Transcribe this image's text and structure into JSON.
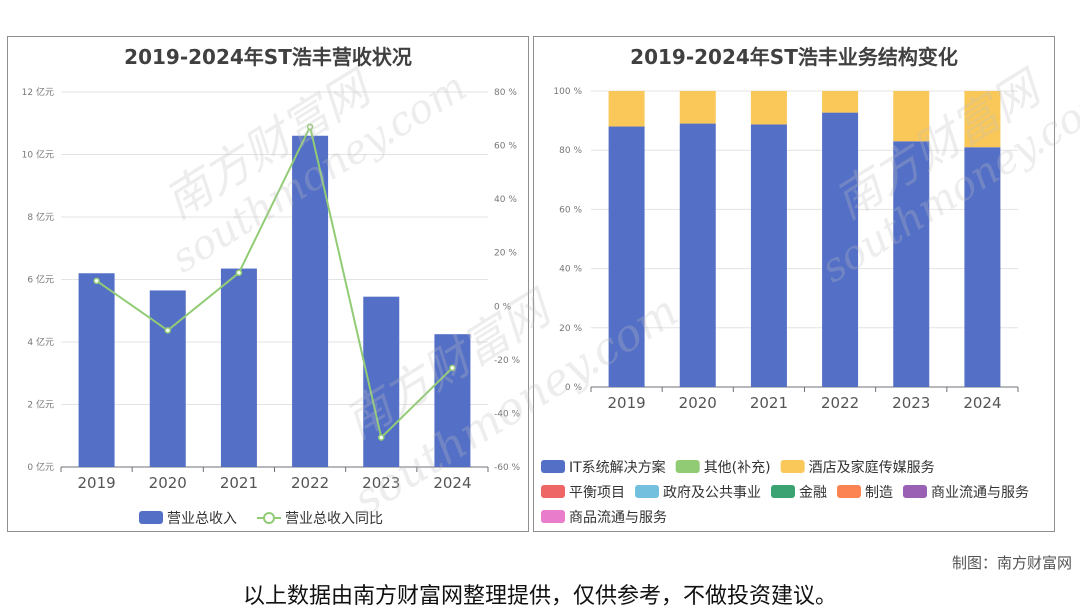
{
  "chart_data": [
    {
      "type": "bar",
      "title": "2019-2024年ST浩丰营收状况",
      "categories": [
        "2019",
        "2020",
        "2021",
        "2022",
        "2023",
        "2024"
      ],
      "left_axis": {
        "ticks": [
          "0 亿元",
          "2 亿元",
          "4 亿元",
          "6 亿元",
          "8 亿元",
          "10 亿元",
          "12 亿元"
        ],
        "ylim": [
          0,
          12
        ]
      },
      "right_axis": {
        "ticks": [
          "-60 %",
          "-40 %",
          "-20 %",
          "0 %",
          "20 %",
          "40 %",
          "60 %",
          "80 %"
        ],
        "ylim": [
          -60,
          80
        ]
      },
      "series": [
        {
          "name": "营业总收入",
          "type": "bar",
          "axis": "left",
          "color": "#5470c6",
          "values": [
            6.2,
            5.65,
            6.35,
            10.6,
            5.45,
            4.25
          ]
        },
        {
          "name": "营业总收入同比",
          "type": "line",
          "axis": "right",
          "color": "#91cc75",
          "values": [
            9.5,
            -9,
            12.5,
            67,
            -49,
            -23
          ]
        }
      ],
      "legend_position": "bottom"
    },
    {
      "type": "bar",
      "stacked": true,
      "title": "2019-2024年ST浩丰业务结构变化",
      "categories": [
        "2019",
        "2020",
        "2021",
        "2022",
        "2023",
        "2024"
      ],
      "y_axis": {
        "ticks": [
          "0 %",
          "20 %",
          "40 %",
          "60 %",
          "80 %",
          "100 %"
        ],
        "ylim": [
          0,
          100
        ]
      },
      "series": [
        {
          "name": "IT系统解决方案",
          "color": "#5470c6",
          "values": [
            88,
            89,
            88.7,
            92.7,
            83,
            81
          ]
        },
        {
          "name": "其他(补充)",
          "color": "#91cc75",
          "values": [
            0,
            0,
            0,
            0,
            0,
            0
          ]
        },
        {
          "name": "酒店及家庭传媒服务",
          "color": "#fac858",
          "values": [
            12,
            11,
            11.3,
            7.3,
            17,
            19
          ]
        },
        {
          "name": "平衡项目",
          "color": "#ee6666",
          "values": [
            0,
            0,
            0,
            0,
            0,
            0
          ]
        },
        {
          "name": "政府及公共事业",
          "color": "#73c0de",
          "values": [
            0,
            0,
            0,
            0,
            0,
            0
          ]
        },
        {
          "name": "金融",
          "color": "#3ba272",
          "values": [
            0,
            0,
            0,
            0,
            0,
            0
          ]
        },
        {
          "name": "制造",
          "color": "#fc8452",
          "values": [
            0,
            0,
            0,
            0,
            0,
            0
          ]
        },
        {
          "name": "商业流通与服务",
          "color": "#9a60b4",
          "values": [
            0,
            0,
            0,
            0,
            0,
            0
          ]
        },
        {
          "name": "商品流通与服务",
          "color": "#ea7ccc",
          "values": [
            0,
            0,
            0,
            0,
            0,
            0
          ]
        }
      ],
      "legend_position": "bottom"
    }
  ],
  "footer": {
    "credit": "制图：南方财富网",
    "disclaimer": "以上数据由南方财富网整理提供，仅供参考，不做投资建议。"
  },
  "watermark": {
    "brand": "南方财富网",
    "url": "southmoney.com"
  }
}
